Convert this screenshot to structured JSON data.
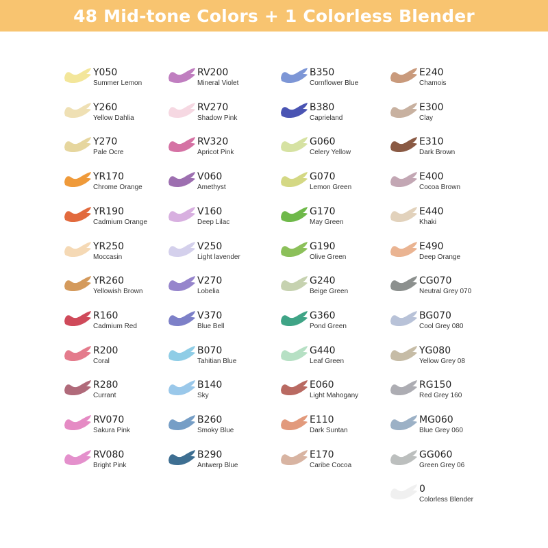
{
  "banner": {
    "title": "48 Mid-tone Colors + 1 Colorless Blender",
    "color": "#f8c470"
  },
  "columns": [
    [
      {
        "code": "Y050",
        "name": "Summer Lemon",
        "color": "#f3e69a"
      },
      {
        "code": "Y260",
        "name": "Yellow Dahlia",
        "color": "#efe0b4"
      },
      {
        "code": "Y270",
        "name": "Pale Ocre",
        "color": "#e6d69e"
      },
      {
        "code": "YR170",
        "name": "Chrome Orange",
        "color": "#ef9a3a"
      },
      {
        "code": "YR190",
        "name": "Cadmium Orange",
        "color": "#e26a3d"
      },
      {
        "code": "YR250",
        "name": "Moccasin",
        "color": "#f5d9b5"
      },
      {
        "code": "YR260",
        "name": "Yellowish Brown",
        "color": "#d49a5c"
      },
      {
        "code": "R160",
        "name": "Cadmium Red",
        "color": "#cf4a5a"
      },
      {
        "code": "R200",
        "name": "Coral",
        "color": "#e47b8c"
      },
      {
        "code": "R280",
        "name": "Currant",
        "color": "#b06a7a"
      },
      {
        "code": "RV070",
        "name": "Sakura Pink",
        "color": "#e58bc4"
      },
      {
        "code": "RV080",
        "name": "Bright Pink",
        "color": "#e490cc"
      }
    ],
    [
      {
        "code": "RV200",
        "name": "Mineral Violet",
        "color": "#c07ec0"
      },
      {
        "code": "RV270",
        "name": "Shadow Pink",
        "color": "#f6d8e2"
      },
      {
        "code": "RV320",
        "name": "Apricot Pink",
        "color": "#d572a4"
      },
      {
        "code": "V060",
        "name": "Amethyst",
        "color": "#9d6fb0"
      },
      {
        "code": "V160",
        "name": "Deep Lilac",
        "color": "#d8b0e0"
      },
      {
        "code": "V250",
        "name": "Light lavender",
        "color": "#d4d0ec"
      },
      {
        "code": "V270",
        "name": "Lobelia",
        "color": "#9685cc"
      },
      {
        "code": "V370",
        "name": "Blue Bell",
        "color": "#7d80c8"
      },
      {
        "code": "B070",
        "name": "Tahitian Blue",
        "color": "#8fcde6"
      },
      {
        "code": "B140",
        "name": "Sky",
        "color": "#9ac8ea"
      },
      {
        "code": "B260",
        "name": "Smoky Blue",
        "color": "#769ec6"
      },
      {
        "code": "B290",
        "name": "Antwerp Blue",
        "color": "#3e6f92"
      }
    ],
    [
      {
        "code": "B350",
        "name": "Cornflower Blue",
        "color": "#7d96d6"
      },
      {
        "code": "B380",
        "name": "Caprieland",
        "color": "#4a54b3"
      },
      {
        "code": "G060",
        "name": "Celery Yellow",
        "color": "#d6e2a2"
      },
      {
        "code": "G070",
        "name": "Lemon Green",
        "color": "#d4d884"
      },
      {
        "code": "G170",
        "name": "May Green",
        "color": "#6fb94a"
      },
      {
        "code": "G190",
        "name": "Olive Green",
        "color": "#8cc05a"
      },
      {
        "code": "G240",
        "name": "Beige Green",
        "color": "#c6d2b0"
      },
      {
        "code": "G360",
        "name": "Pond Green",
        "color": "#3fa486"
      },
      {
        "code": "G440",
        "name": "Leaf Green",
        "color": "#b6e0c4"
      },
      {
        "code": "E060",
        "name": "Light Mahogany",
        "color": "#b96a62"
      },
      {
        "code": "E110",
        "name": "Dark Suntan",
        "color": "#e29a7c"
      },
      {
        "code": "E170",
        "name": "Caribe Cocoa",
        "color": "#d8b4a2"
      }
    ],
    [
      {
        "code": "E240",
        "name": "Chamois",
        "color": "#c99a7c"
      },
      {
        "code": "E300",
        "name": "Clay",
        "color": "#c8b1a0"
      },
      {
        "code": "E310",
        "name": "Dark Brown",
        "color": "#8a5a44"
      },
      {
        "code": "E400",
        "name": "Cocoa Brown",
        "color": "#c3a7b4"
      },
      {
        "code": "E440",
        "name": " Khaki",
        "color": "#e2d2bc"
      },
      {
        "code": "E490",
        "name": "Deep Orange",
        "color": "#eab492"
      },
      {
        "code": "CG070",
        "name": "Neutral Grey 070",
        "color": "#8c908e"
      },
      {
        "code": "BG070",
        "name": "Cool Grey 080",
        "color": "#b8c2d8"
      },
      {
        "code": "YG080",
        "name": "Yellow Grey 08",
        "color": "#c6bca6"
      },
      {
        "code": "RG150",
        "name": "Red Grey 160",
        "color": "#adadb3"
      },
      {
        "code": "MG060",
        "name": "Blue Grey 060",
        "color": "#9cb1c6"
      },
      {
        "code": "GG060",
        "name": "Green Grey 06",
        "color": "#bcbfbe"
      },
      {
        "code": "0",
        "name": "Colorless Blender",
        "color": "#f0f0f0"
      }
    ]
  ]
}
